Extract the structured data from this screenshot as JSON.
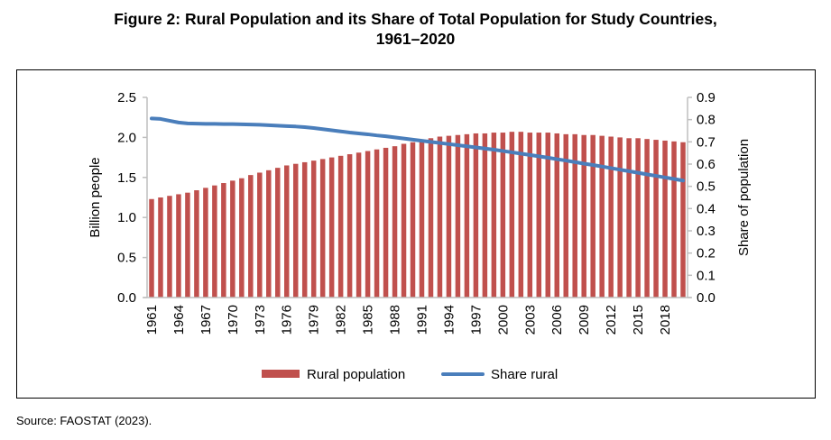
{
  "figure": {
    "title_line1": "Figure 2: Rural Population and its Share of Total Population for Study Countries,",
    "title_line2": "1961–2020",
    "source": "Source: FAOSTAT (2023)."
  },
  "chart_data": {
    "type": "bar+line",
    "title": "Figure 2: Rural Population and its Share of Total Population for Study Countries, 1961–2020",
    "x": [
      1961,
      1962,
      1963,
      1964,
      1965,
      1966,
      1967,
      1968,
      1969,
      1970,
      1971,
      1972,
      1973,
      1974,
      1975,
      1976,
      1977,
      1978,
      1979,
      1980,
      1981,
      1982,
      1983,
      1984,
      1985,
      1986,
      1987,
      1988,
      1989,
      1990,
      1991,
      1992,
      1993,
      1994,
      1995,
      1996,
      1997,
      1998,
      1999,
      2000,
      2001,
      2002,
      2003,
      2004,
      2005,
      2006,
      2007,
      2008,
      2009,
      2010,
      2011,
      2012,
      2013,
      2014,
      2015,
      2016,
      2017,
      2018,
      2019,
      2020
    ],
    "x_tick_labels": [
      "1961",
      "1964",
      "1967",
      "1970",
      "1973",
      "1976",
      "1979",
      "1982",
      "1985",
      "1988",
      "1991",
      "1994",
      "1997",
      "2000",
      "2003",
      "2006",
      "2009",
      "2012",
      "2015",
      "2018"
    ],
    "ylabel_left": "Billion people",
    "ylabel_right": "Share of population",
    "ylim_left": [
      0,
      2.5
    ],
    "ylim_right": [
      0,
      0.9
    ],
    "yticks_left": [
      "0.0",
      "0.5",
      "1.0",
      "1.5",
      "2.0",
      "2.5"
    ],
    "yticks_right": [
      "0.0",
      "0.1",
      "0.2",
      "0.3",
      "0.4",
      "0.5",
      "0.6",
      "0.7",
      "0.8",
      "0.9"
    ],
    "grid": false,
    "legend_position": "bottom",
    "colors": {
      "bar": "#C0504D",
      "line": "#4A7EBB",
      "axis": "#BFBFBF"
    },
    "series": [
      {
        "name": "Rural population",
        "type": "bar",
        "axis": "left",
        "values": [
          1.23,
          1.25,
          1.27,
          1.29,
          1.31,
          1.34,
          1.37,
          1.4,
          1.43,
          1.46,
          1.49,
          1.53,
          1.56,
          1.59,
          1.62,
          1.65,
          1.67,
          1.69,
          1.71,
          1.73,
          1.75,
          1.77,
          1.79,
          1.81,
          1.83,
          1.85,
          1.87,
          1.89,
          1.92,
          1.94,
          1.97,
          1.99,
          2.01,
          2.02,
          2.03,
          2.04,
          2.05,
          2.05,
          2.06,
          2.06,
          2.07,
          2.07,
          2.06,
          2.06,
          2.06,
          2.05,
          2.04,
          2.04,
          2.03,
          2.03,
          2.02,
          2.01,
          2.0,
          1.99,
          1.99,
          1.98,
          1.97,
          1.96,
          1.95,
          1.94
        ]
      },
      {
        "name": "Share rural",
        "type": "line",
        "axis": "right",
        "values": [
          0.805,
          0.803,
          0.795,
          0.787,
          0.783,
          0.782,
          0.781,
          0.781,
          0.78,
          0.78,
          0.779,
          0.778,
          0.777,
          0.775,
          0.773,
          0.771,
          0.769,
          0.766,
          0.762,
          0.757,
          0.752,
          0.747,
          0.742,
          0.738,
          0.734,
          0.729,
          0.725,
          0.72,
          0.715,
          0.71,
          0.705,
          0.7,
          0.695,
          0.69,
          0.685,
          0.68,
          0.675,
          0.67,
          0.665,
          0.659,
          0.653,
          0.647,
          0.641,
          0.635,
          0.629,
          0.622,
          0.616,
          0.609,
          0.602,
          0.596,
          0.589,
          0.582,
          0.575,
          0.568,
          0.561,
          0.554,
          0.547,
          0.54,
          0.533,
          0.526
        ]
      }
    ]
  }
}
